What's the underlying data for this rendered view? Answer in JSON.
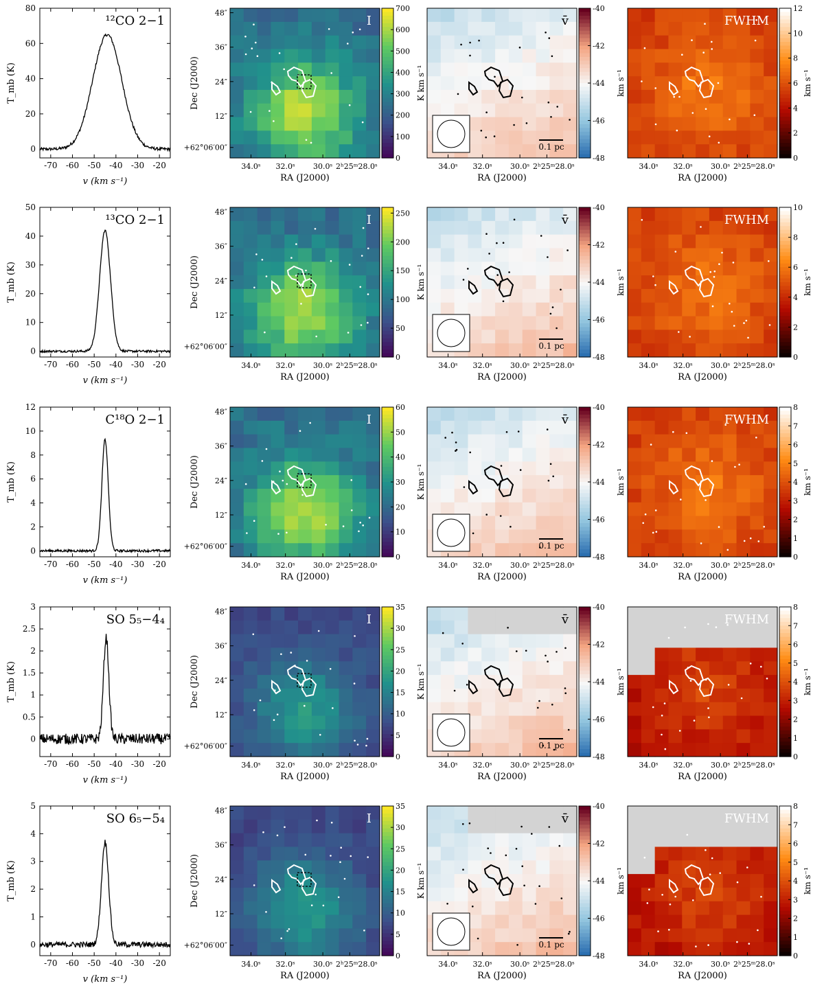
{
  "figure": {
    "columns": {
      "spectrum": {
        "xlabel": "v (km s⁻¹)",
        "ylabel": "T_mb (K)",
        "xlim": [
          -75,
          -15
        ],
        "xticks": [
          -70,
          -60,
          -50,
          -40,
          -30,
          -20
        ]
      },
      "map": {
        "xlabel": "RA (J2000)",
        "ylabel": "Dec (J2000)",
        "ra_ticks": [
          "34.0ˢ",
          "32.0ˢ",
          "30.0ˢ",
          "2ʰ25ᵐ28.0ˢ"
        ],
        "dec_ticks": [
          "48″",
          "36″",
          "24″",
          "12″",
          "+62°06′00″"
        ],
        "scalebar": "0.1 pc"
      },
      "velocity": {
        "cbar_label": "km s⁻¹",
        "vlim": [
          -48,
          -40
        ],
        "ticks": [
          -48,
          -46,
          -44,
          -42,
          -40
        ]
      },
      "fwhm": {
        "cbar_label": "km s⁻¹"
      }
    },
    "panel_labels": {
      "intensity": "I",
      "velocity": "v̄",
      "fwhm": "FWHM"
    }
  },
  "colors": {
    "spectrum_line": "#000000",
    "contour_intensity": "#ffffff",
    "contour_velocity": "#000000",
    "masked": "#d3d3d3"
  },
  "chart_data": [
    {
      "type": "line",
      "title": "¹²CO 2−1",
      "ylim": [
        -5,
        80
      ],
      "yticks": [
        0,
        20,
        40,
        60,
        80
      ],
      "peak_velocity": -44,
      "peak_tmb": 65,
      "width_kms": 16,
      "noise_k": 0.2,
      "intensity_cbar": {
        "label": "K km s⁻¹",
        "lim": [
          0,
          700
        ],
        "ticks": [
          0,
          100,
          200,
          300,
          400,
          500,
          600,
          700
        ]
      },
      "fwhm_cbar": {
        "lim": [
          0,
          12
        ],
        "ticks": [
          0,
          2,
          4,
          6,
          8,
          10,
          12
        ]
      }
    },
    {
      "type": "line",
      "title": "¹³CO 2−1",
      "ylim": [
        -2,
        50
      ],
      "yticks": [
        0,
        10,
        20,
        30,
        40,
        50
      ],
      "peak_velocity": -45,
      "peak_tmb": 42,
      "width_kms": 6,
      "noise_k": 0.15,
      "intensity_cbar": {
        "label": "K km s⁻¹",
        "lim": [
          0,
          260
        ],
        "ticks": [
          0,
          50,
          100,
          150,
          200,
          250
        ]
      },
      "fwhm_cbar": {
        "lim": [
          0,
          10
        ],
        "ticks": [
          0,
          2,
          4,
          6,
          8,
          10
        ]
      }
    },
    {
      "type": "line",
      "title": "C¹⁸O 2−1",
      "ylim": [
        -0.5,
        12
      ],
      "yticks": [
        0,
        2,
        4,
        6,
        8,
        10,
        12
      ],
      "peak_velocity": -45,
      "peak_tmb": 9.3,
      "width_kms": 3.5,
      "noise_k": 0.1,
      "intensity_cbar": {
        "label": "K km s⁻¹",
        "lim": [
          0,
          60
        ],
        "ticks": [
          0,
          10,
          20,
          30,
          40,
          50,
          60
        ]
      },
      "fwhm_cbar": {
        "lim": [
          0,
          8
        ],
        "ticks": [
          0,
          1,
          2,
          3,
          4,
          5,
          6,
          7,
          8
        ]
      }
    },
    {
      "type": "line",
      "title": "SO 5₅−4₄",
      "ylim": [
        -0.4,
        3.0
      ],
      "yticks": [
        0.0,
        0.5,
        1.0,
        1.5,
        2.0,
        2.5,
        3.0
      ],
      "peak_velocity": -44.5,
      "peak_tmb": 2.3,
      "width_kms": 3,
      "noise_k": 0.12,
      "intensity_cbar": {
        "label": "K km s⁻¹",
        "lim": [
          0,
          35
        ],
        "ticks": [
          0,
          5,
          10,
          15,
          20,
          25,
          30,
          35
        ]
      },
      "fwhm_cbar": {
        "lim": [
          0,
          8
        ],
        "ticks": [
          0,
          1,
          2,
          3,
          4,
          5,
          6,
          7,
          8
        ]
      }
    },
    {
      "type": "line",
      "title": "SO 6₅−5₄",
      "ylim": [
        -0.4,
        5
      ],
      "yticks": [
        0,
        1,
        2,
        3,
        4,
        5
      ],
      "peak_velocity": -45,
      "peak_tmb": 3.7,
      "width_kms": 4,
      "noise_k": 0.1,
      "intensity_cbar": {
        "label": "K km s⁻¹",
        "lim": [
          0,
          35
        ],
        "ticks": [
          0,
          5,
          10,
          15,
          20,
          25,
          30,
          35
        ]
      },
      "fwhm_cbar": {
        "lim": [
          0,
          8
        ],
        "ticks": [
          0,
          1,
          2,
          3,
          4,
          5,
          6,
          7,
          8
        ]
      }
    }
  ]
}
